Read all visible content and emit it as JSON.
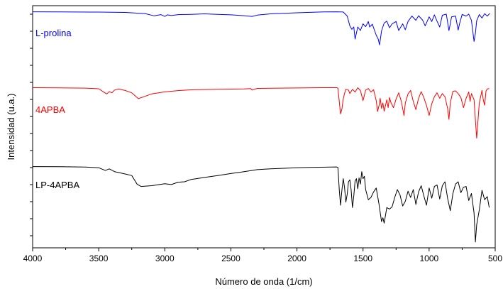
{
  "chart_data": {
    "type": "line",
    "xlabel": "Número de onda (1/cm)",
    "ylabel": "Intensidad (u.a.)",
    "xlim": [
      4000,
      500
    ],
    "x_reversed": true,
    "y_ticks_labeled": false,
    "x_ticks": [
      "4000",
      "3500",
      "3000",
      "2500",
      "2000",
      "1500",
      "1000",
      "500"
    ],
    "grid": false,
    "series": [
      {
        "name": "L-prolina",
        "color": "#0000ff",
        "points": [
          [
            4000,
            0.95
          ],
          [
            3800,
            0.93
          ],
          [
            3500,
            0.91
          ],
          [
            3300,
            0.86
          ],
          [
            3150,
            0.72
          ],
          [
            3080,
            0.43
          ],
          [
            3030,
            0.58
          ],
          [
            3000,
            0.35
          ],
          [
            2980,
            0.55
          ],
          [
            2950,
            0.46
          ],
          [
            2900,
            0.58
          ],
          [
            2800,
            0.62
          ],
          [
            2700,
            0.68
          ],
          [
            2600,
            0.62
          ],
          [
            2500,
            0.55
          ],
          [
            2400,
            0.45
          ],
          [
            2340,
            0.35
          ],
          [
            2300,
            0.52
          ],
          [
            2200,
            0.68
          ],
          [
            2000,
            0.82
          ],
          [
            1800,
            0.93
          ],
          [
            1700,
            0.95
          ],
          [
            1650,
            0.92
          ],
          [
            1620,
            0.4
          ],
          [
            1600,
            -0.85
          ],
          [
            1585,
            -1.3
          ],
          [
            1570,
            -1.0
          ],
          [
            1560,
            -2.55
          ],
          [
            1540,
            -1.0
          ],
          [
            1520,
            -1.45
          ],
          [
            1500,
            -0.6
          ],
          [
            1480,
            -0.95
          ],
          [
            1460,
            -0.3
          ],
          [
            1450,
            -1.0
          ],
          [
            1430,
            -0.65
          ],
          [
            1400,
            -2.05
          ],
          [
            1385,
            -2.55
          ],
          [
            1375,
            -3.3
          ],
          [
            1360,
            -1.5
          ],
          [
            1340,
            -0.5
          ],
          [
            1320,
            -0.25
          ],
          [
            1300,
            -1.1
          ],
          [
            1280,
            -0.6
          ],
          [
            1250,
            -0.3
          ],
          [
            1230,
            -1.45
          ],
          [
            1200,
            -0.6
          ],
          [
            1180,
            -1.35
          ],
          [
            1160,
            -0.3
          ],
          [
            1130,
            0.4
          ],
          [
            1100,
            -0.15
          ],
          [
            1080,
            0.45
          ],
          [
            1050,
            -0.1
          ],
          [
            1030,
            -0.85
          ],
          [
            1000,
            0.3
          ],
          [
            980,
            -0.3
          ],
          [
            960,
            0.55
          ],
          [
            940,
            -0.25
          ],
          [
            920,
            -1.0
          ],
          [
            900,
            0.5
          ],
          [
            870,
            0.65
          ],
          [
            850,
            -1.45
          ],
          [
            840,
            -0.6
          ],
          [
            830,
            0.3
          ],
          [
            800,
            0.4
          ],
          [
            780,
            -1.4
          ],
          [
            770,
            -0.6
          ],
          [
            750,
            0.6
          ],
          [
            720,
            0.4
          ],
          [
            700,
            0.65
          ],
          [
            680,
            -0.15
          ],
          [
            660,
            -2.85
          ],
          [
            650,
            -1.8
          ],
          [
            640,
            -0.2
          ],
          [
            620,
            0.6
          ],
          [
            600,
            0.15
          ],
          [
            580,
            0.7
          ],
          [
            560,
            0.4
          ],
          [
            540,
            0.75
          ]
        ]
      },
      {
        "name": "4APBA",
        "color": "#ff0000",
        "points": [
          [
            4000,
            0.95
          ],
          [
            3800,
            0.94
          ],
          [
            3600,
            0.9
          ],
          [
            3500,
            0.82
          ],
          [
            3440,
            0.15
          ],
          [
            3420,
            0.45
          ],
          [
            3400,
            0.3
          ],
          [
            3380,
            0.65
          ],
          [
            3350,
            0.78
          ],
          [
            3300,
            0.6
          ],
          [
            3250,
            0.3
          ],
          [
            3200,
            -0.45
          ],
          [
            3150,
            -0.15
          ],
          [
            3100,
            0.15
          ],
          [
            3000,
            0.42
          ],
          [
            2900,
            0.58
          ],
          [
            2800,
            0.68
          ],
          [
            2600,
            0.75
          ],
          [
            2400,
            0.8
          ],
          [
            2350,
            0.85
          ],
          [
            2340,
            0.65
          ],
          [
            2300,
            0.86
          ],
          [
            2000,
            0.92
          ],
          [
            1800,
            0.95
          ],
          [
            1700,
            0.95
          ],
          [
            1690,
            0.9
          ],
          [
            1680,
            -0.8
          ],
          [
            1670,
            -2.4
          ],
          [
            1660,
            -1.8
          ],
          [
            1650,
            -0.5
          ],
          [
            1640,
            0.2
          ],
          [
            1630,
            0.75
          ],
          [
            1610,
            0.65
          ],
          [
            1600,
            0.2
          ],
          [
            1580,
            0.75
          ],
          [
            1560,
            0.4
          ],
          [
            1540,
            0.95
          ],
          [
            1520,
            0.6
          ],
          [
            1500,
            -0.7
          ],
          [
            1480,
            0.65
          ],
          [
            1460,
            0.85
          ],
          [
            1440,
            0.4
          ],
          [
            1420,
            0.7
          ],
          [
            1400,
            -0.7
          ],
          [
            1390,
            -2.1
          ],
          [
            1380,
            -1.4
          ],
          [
            1370,
            -0.4
          ],
          [
            1360,
            -1.7
          ],
          [
            1350,
            -1.0
          ],
          [
            1340,
            -2.05
          ],
          [
            1320,
            -0.6
          ],
          [
            1310,
            -1.6
          ],
          [
            1300,
            -0.3
          ],
          [
            1290,
            -0.9
          ],
          [
            1270,
            -1.6
          ],
          [
            1250,
            -0.5
          ],
          [
            1230,
            0.3
          ],
          [
            1210,
            -0.8
          ],
          [
            1190,
            -2.6
          ],
          [
            1180,
            -1.0
          ],
          [
            1160,
            0.15
          ],
          [
            1140,
            0.6
          ],
          [
            1120,
            -0.8
          ],
          [
            1100,
            -1.85
          ],
          [
            1080,
            -0.4
          ],
          [
            1060,
            0.45
          ],
          [
            1040,
            -0.3
          ],
          [
            1020,
            -1.3
          ],
          [
            1000,
            -2.6
          ],
          [
            980,
            -1.1
          ],
          [
            960,
            -0.2
          ],
          [
            940,
            0.3
          ],
          [
            920,
            -0.4
          ],
          [
            900,
            0.2
          ],
          [
            880,
            -0.2
          ],
          [
            860,
            -1.7
          ],
          [
            850,
            -3.1
          ],
          [
            840,
            -1.0
          ],
          [
            820,
            0.5
          ],
          [
            800,
            0.55
          ],
          [
            780,
            0.2
          ],
          [
            760,
            -0.3
          ],
          [
            740,
            -1.6
          ],
          [
            720,
            -0.4
          ],
          [
            700,
            0.4
          ],
          [
            690,
            -0.8
          ],
          [
            680,
            0.2
          ],
          [
            660,
            -0.6
          ],
          [
            650,
            -3.2
          ],
          [
            640,
            -5.5
          ],
          [
            630,
            -3.2
          ],
          [
            620,
            -1.0
          ],
          [
            600,
            0.6
          ],
          [
            590,
            -0.6
          ],
          [
            580,
            -1.3
          ],
          [
            570,
            0.5
          ],
          [
            560,
            0.8
          ],
          [
            545,
            0.85
          ]
        ]
      },
      {
        "name": "LP-4APBA",
        "color": "#000000",
        "points": [
          [
            4000,
            0.95
          ],
          [
            3800,
            0.93
          ],
          [
            3600,
            0.88
          ],
          [
            3500,
            0.8
          ],
          [
            3450,
            0.45
          ],
          [
            3420,
            0.65
          ],
          [
            3380,
            0.3
          ],
          [
            3300,
            0.0
          ],
          [
            3250,
            -0.2
          ],
          [
            3210,
            -1.3
          ],
          [
            3180,
            -1.6
          ],
          [
            3100,
            -1.5
          ],
          [
            3000,
            -1.25
          ],
          [
            2950,
            -1.35
          ],
          [
            2900,
            -1.05
          ],
          [
            2850,
            -1.0
          ],
          [
            2800,
            -0.7
          ],
          [
            2700,
            -0.45
          ],
          [
            2600,
            -0.2
          ],
          [
            2500,
            0.05
          ],
          [
            2400,
            0.3
          ],
          [
            2300,
            0.55
          ],
          [
            2200,
            0.65
          ],
          [
            2000,
            0.8
          ],
          [
            1900,
            0.85
          ],
          [
            1700,
            0.9
          ],
          [
            1690,
            0.85
          ],
          [
            1680,
            -2.0
          ],
          [
            1670,
            -4.0
          ],
          [
            1660,
            -2.1
          ],
          [
            1650,
            -0.6
          ],
          [
            1640,
            -1.7
          ],
          [
            1630,
            -3.6
          ],
          [
            1620,
            -2.6
          ],
          [
            1610,
            -1.0
          ],
          [
            1600,
            -0.75
          ],
          [
            1590,
            -2.0
          ],
          [
            1580,
            -4.3
          ],
          [
            1570,
            -2.8
          ],
          [
            1560,
            -0.9
          ],
          [
            1550,
            -0.6
          ],
          [
            1540,
            -1.9
          ],
          [
            1530,
            -0.5
          ],
          [
            1520,
            -1.3
          ],
          [
            1510,
            0.3
          ],
          [
            1500,
            -0.6
          ],
          [
            1490,
            -0.3
          ],
          [
            1480,
            -2.0
          ],
          [
            1460,
            -3.3
          ],
          [
            1440,
            -3.0
          ],
          [
            1420,
            -2.3
          ],
          [
            1400,
            -1.8
          ],
          [
            1380,
            -3.8
          ],
          [
            1360,
            -6.1
          ],
          [
            1350,
            -5.6
          ],
          [
            1340,
            -6.3
          ],
          [
            1320,
            -4.3
          ],
          [
            1300,
            -4.5
          ],
          [
            1280,
            -4.2
          ],
          [
            1260,
            -3.0
          ],
          [
            1240,
            -2.0
          ],
          [
            1220,
            -2.7
          ],
          [
            1200,
            -4.1
          ],
          [
            1180,
            -3.5
          ],
          [
            1160,
            -2.2
          ],
          [
            1140,
            -3.0
          ],
          [
            1120,
            -2.0
          ],
          [
            1100,
            -3.9
          ],
          [
            1080,
            -2.3
          ],
          [
            1060,
            -1.5
          ],
          [
            1040,
            -2.8
          ],
          [
            1020,
            -4.0
          ],
          [
            1000,
            -1.8
          ],
          [
            980,
            -3.1
          ],
          [
            960,
            -1.6
          ],
          [
            940,
            -1.4
          ],
          [
            920,
            -3.2
          ],
          [
            900,
            -1.5
          ],
          [
            880,
            -1.0
          ],
          [
            860,
            -3.1
          ],
          [
            840,
            -4.7
          ],
          [
            820,
            -2.5
          ],
          [
            800,
            -1.3
          ],
          [
            780,
            -1.0
          ],
          [
            760,
            -2.4
          ],
          [
            740,
            -1.7
          ],
          [
            720,
            -1.6
          ],
          [
            700,
            -3.4
          ],
          [
            680,
            -2.5
          ],
          [
            660,
            -5.0
          ],
          [
            650,
            -8.7
          ],
          [
            640,
            -6.5
          ],
          [
            620,
            -4.6
          ],
          [
            600,
            -2.1
          ],
          [
            580,
            -3.3
          ],
          [
            560,
            -2.9
          ],
          [
            545,
            -4.3
          ]
        ]
      }
    ]
  }
}
